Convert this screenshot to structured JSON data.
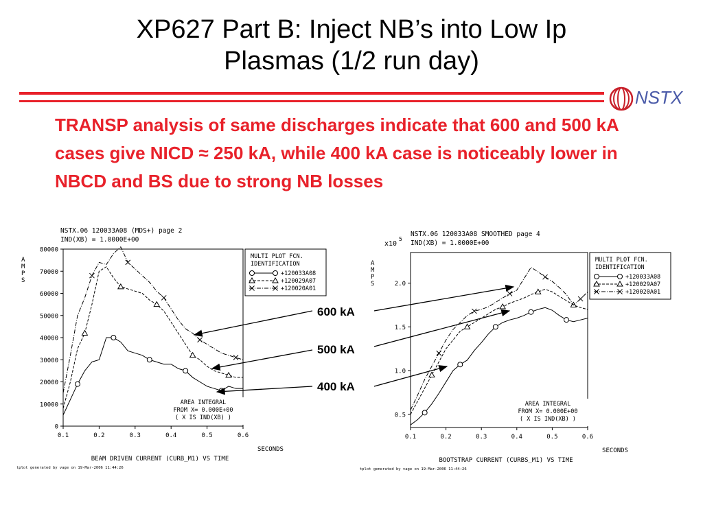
{
  "slide": {
    "title_line1": "XP627 Part B: Inject NB’s into Low Ip",
    "title_line2": "Plasmas (1/2 run day)",
    "logo_text": "NSTX",
    "body_text": "TRANSP analysis of same discharges indicate that 600 and 500 kA cases give NICD ≈ 250 kA, while 400 kA case is noticeably lower in NBCD and BS due to strong NB losses",
    "annotations": [
      "600 kA",
      "500 kA",
      "400 kA"
    ],
    "colors": {
      "accent_red": "#e8212a",
      "logo_blue": "#4a5aa8"
    }
  },
  "chart_data": [
    {
      "type": "line",
      "header_line1": "NSTX.06 120033A08 (MDS+) page 2",
      "header_line2": "IND(XB) = 1.0000E+00",
      "ylabel": "AMPS",
      "xlabel": "SECONDS",
      "caption": "BEAM DRIVEN CURRENT (CURB_M1) VS TIME",
      "footer": "tplot generated by vage on 19-Mar-2006 11:44:26",
      "legend_title": [
        "MULTI PLOT FCN.",
        "IDENTIFICATION"
      ],
      "area_box": [
        "AREA INTEGRAL",
        "FROM X= 0.000E+00",
        "( X IS IND(XB) )"
      ],
      "xlim": [
        0.1,
        0.6
      ],
      "ylim": [
        0,
        80000
      ],
      "xticks": [
        "0.1",
        "0.2",
        "0.3",
        "0.4",
        "0.5",
        "0.6"
      ],
      "yticks": [
        "0",
        "10000",
        "20000",
        "30000",
        "40000",
        "50000",
        "60000",
        "70000",
        "80000"
      ],
      "series": [
        {
          "name": "+120033A08",
          "marker": "circle",
          "dash": "solid",
          "x": [
            0.1,
            0.12,
            0.14,
            0.16,
            0.18,
            0.2,
            0.22,
            0.24,
            0.26,
            0.28,
            0.3,
            0.32,
            0.34,
            0.36,
            0.38,
            0.4,
            0.42,
            0.44,
            0.46,
            0.48,
            0.5,
            0.52,
            0.54,
            0.56,
            0.58,
            0.6
          ],
          "y": [
            5000,
            12000,
            19000,
            25000,
            29000,
            30000,
            40000,
            40000,
            38000,
            34000,
            33000,
            32000,
            30000,
            29000,
            28000,
            28000,
            26000,
            25000,
            22000,
            20000,
            18000,
            17000,
            16000,
            18000,
            17000,
            17000
          ]
        },
        {
          "name": "+120029A07",
          "marker": "triangle",
          "dash": "dashed",
          "x": [
            0.1,
            0.12,
            0.14,
            0.16,
            0.18,
            0.2,
            0.22,
            0.24,
            0.26,
            0.28,
            0.3,
            0.32,
            0.34,
            0.36,
            0.38,
            0.4,
            0.42,
            0.44,
            0.46,
            0.48,
            0.5,
            0.52,
            0.54,
            0.56,
            0.58,
            0.6
          ],
          "y": [
            8000,
            20000,
            35000,
            42000,
            55000,
            70000,
            72000,
            67000,
            63000,
            62000,
            61000,
            60000,
            57000,
            55000,
            52000,
            47000,
            42000,
            37000,
            32000,
            30000,
            27000,
            25000,
            24000,
            23000,
            22000,
            22000
          ]
        },
        {
          "name": "+120020A01",
          "marker": "x",
          "dash": "dashdot",
          "x": [
            0.1,
            0.12,
            0.14,
            0.16,
            0.18,
            0.2,
            0.22,
            0.24,
            0.26,
            0.28,
            0.3,
            0.32,
            0.34,
            0.36,
            0.38,
            0.4,
            0.42,
            0.44,
            0.46,
            0.48,
            0.5,
            0.52,
            0.54,
            0.56,
            0.58,
            0.6
          ],
          "y": [
            15000,
            32000,
            50000,
            58000,
            68000,
            74000,
            73000,
            78000,
            81000,
            74000,
            71000,
            68000,
            65000,
            61000,
            58000,
            53000,
            48000,
            44000,
            42000,
            39000,
            37000,
            35000,
            33000,
            32000,
            31000,
            30000
          ]
        }
      ]
    },
    {
      "type": "line",
      "header_line1": "NSTX.06 120033A08 SMOOTHED page 4",
      "header_line2": "IND(XB) = 1.0000E+00",
      "multiplier": "x10",
      "multiplier_exp": "5",
      "ylabel": "AMPS",
      "xlabel": "SECONDS",
      "caption": "BOOTSTRAP CURRENT (CURBS_M1) VS TIME",
      "footer": "tplot generated by vage on 19-Mar-2006 11:44:26",
      "legend_title": [
        "MULTI PLOT FCN.",
        "IDENTIFICATION"
      ],
      "area_box": [
        "AREA INTEGRAL",
        "FROM X= 0.000E+00",
        "( X IS IND(XB) )"
      ],
      "xlim": [
        0.1,
        0.6
      ],
      "ylim": [
        0.35,
        2.35
      ],
      "xticks": [
        "0.1",
        "0.2",
        "0.3",
        "0.4",
        "0.5",
        "0.6"
      ],
      "yticks": [
        "0.5",
        "1.0",
        "1.5",
        "2.0"
      ],
      "series": [
        {
          "name": "+120033A08",
          "marker": "circle",
          "dash": "solid",
          "x": [
            0.1,
            0.12,
            0.14,
            0.16,
            0.18,
            0.2,
            0.22,
            0.24,
            0.26,
            0.28,
            0.3,
            0.32,
            0.34,
            0.36,
            0.38,
            0.4,
            0.42,
            0.44,
            0.46,
            0.48,
            0.5,
            0.52,
            0.54,
            0.56,
            0.58,
            0.6
          ],
          "y": [
            0.38,
            0.44,
            0.52,
            0.62,
            0.74,
            0.87,
            1.0,
            1.07,
            1.12,
            1.23,
            1.32,
            1.42,
            1.5,
            1.55,
            1.58,
            1.6,
            1.63,
            1.67,
            1.7,
            1.72,
            1.69,
            1.63,
            1.58,
            1.56,
            1.58,
            1.6
          ]
        },
        {
          "name": "+120029A07",
          "marker": "triangle",
          "dash": "dashed",
          "x": [
            0.1,
            0.12,
            0.14,
            0.16,
            0.18,
            0.2,
            0.22,
            0.24,
            0.26,
            0.28,
            0.3,
            0.32,
            0.34,
            0.36,
            0.38,
            0.4,
            0.42,
            0.44,
            0.46,
            0.48,
            0.5,
            0.52,
            0.54,
            0.56,
            0.58,
            0.6
          ],
          "y": [
            0.5,
            0.65,
            0.8,
            0.95,
            1.1,
            1.25,
            1.35,
            1.45,
            1.5,
            1.55,
            1.6,
            1.65,
            1.7,
            1.73,
            1.77,
            1.8,
            1.83,
            1.87,
            1.9,
            1.93,
            1.9,
            1.85,
            1.8,
            1.75,
            1.72,
            1.7
          ]
        },
        {
          "name": "+120020A01",
          "marker": "x",
          "dash": "dashdot",
          "x": [
            0.1,
            0.12,
            0.14,
            0.16,
            0.18,
            0.2,
            0.22,
            0.24,
            0.26,
            0.28,
            0.3,
            0.32,
            0.34,
            0.36,
            0.38,
            0.4,
            0.42,
            0.44,
            0.46,
            0.48,
            0.5,
            0.52,
            0.54,
            0.56,
            0.58,
            0.6
          ],
          "y": [
            0.55,
            0.72,
            0.9,
            1.05,
            1.2,
            1.35,
            1.47,
            1.55,
            1.63,
            1.68,
            1.7,
            1.73,
            1.78,
            1.83,
            1.88,
            1.92,
            2.05,
            2.18,
            2.13,
            2.07,
            2.02,
            1.95,
            1.87,
            1.75,
            1.82,
            1.9
          ]
        }
      ]
    }
  ]
}
